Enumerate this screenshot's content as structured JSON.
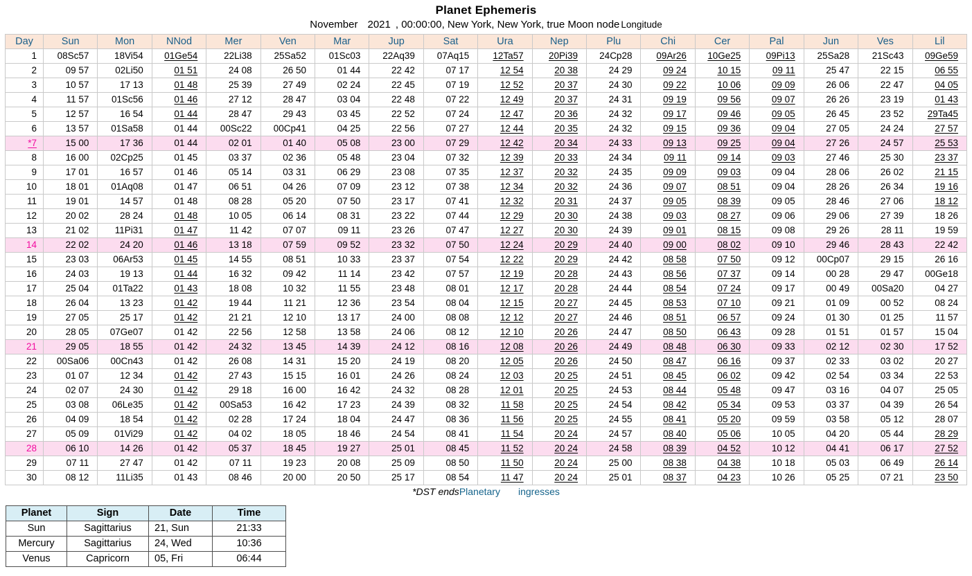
{
  "title": "Planet Ephemeris",
  "subtitle": [
    "November",
    "2021",
    ", 00:00:00, New York, New York, true Moon node",
    "Longitude"
  ],
  "colors": {
    "header_bg": "#fbe6d8",
    "header_text": "#1b5f8a",
    "hl_bg": "#fcdcef",
    "magenta": "#f20ca0",
    "grid": "#c9c9c9",
    "link": "#16648c",
    "ing_header_bg": "#d8eef5"
  },
  "note": "underscore prefix on a cell value means the value is rendered underlined (retrograde)",
  "table": {
    "columns": [
      "Day",
      "Sun",
      "Mon",
      "NNod",
      "Mer",
      "Ven",
      "Mar",
      "Jup",
      "Sat",
      "Ura",
      "Nep",
      "Plu",
      "Chi",
      "Cer",
      "Pal",
      "Jun",
      "Ves",
      "Lil"
    ],
    "rows": [
      {
        "day": "1",
        "cells": [
          "08Sc57",
          "18Vi54",
          "_01Ge54",
          "22Li38",
          "25Sa52",
          "01Sc03",
          "22Aq39",
          "07Aq15",
          "_12Ta57",
          "_20Pi39",
          "24Cp28",
          "_09Ar26",
          "_10Ge25",
          "_09Pi13",
          "25Sa28",
          "21Sc43",
          "_09Ge59"
        ]
      },
      {
        "day": "2",
        "cells": [
          "09 57",
          "02Li50",
          "_01 51",
          "24 08",
          "26 50",
          "01 44",
          "22 42",
          "07 17",
          "_12 54",
          "_20 38",
          "24 29",
          "_09 24",
          "_10 15",
          "_09 11",
          "25 47",
          "22 15",
          "_06 55"
        ]
      },
      {
        "day": "3",
        "cells": [
          "10 57",
          "17 13",
          "_01 48",
          "25 39",
          "27 49",
          "02 24",
          "22 45",
          "07 19",
          "_12 52",
          "_20 37",
          "24 30",
          "_09 22",
          "_10 06",
          "_09 09",
          "26 06",
          "22 47",
          "_04 05"
        ]
      },
      {
        "day": "4",
        "cells": [
          "11 57",
          "01Sc56",
          "_01 46",
          "27 12",
          "28 47",
          "03 04",
          "22 48",
          "07 22",
          "_12 49",
          "_20 37",
          "24 31",
          "_09 19",
          "_09 56",
          "_09 07",
          "26 26",
          "23 19",
          "_01 43"
        ]
      },
      {
        "day": "5",
        "cells": [
          "12 57",
          "16 54",
          "_01 44",
          "28 47",
          "29 43",
          "03 45",
          "22 52",
          "07 24",
          "_12 47",
          "_20 36",
          "24 32",
          "_09 17",
          "_09 46",
          "_09 05",
          "26 45",
          "23 52",
          "_29Ta45"
        ]
      },
      {
        "day": "6",
        "cells": [
          "13 57",
          "01Sa58",
          "01 44",
          "00Sc22",
          "00Cp41",
          "04 25",
          "22 56",
          "07 27",
          "_12 44",
          "_20 35",
          "24 32",
          "_09 15",
          "_09 36",
          "_09 04",
          "27 05",
          "24 24",
          "_27 57"
        ]
      },
      {
        "day": "*7",
        "hl": true,
        "mag": true,
        "du": true,
        "cells": [
          "15 00",
          "17 36",
          "01 44",
          "02 01",
          "01 40",
          "05 08",
          "23 00",
          "07 29",
          "_12 42",
          "_20 34",
          "24 33",
          "_09 13",
          "_09 25",
          "_09 04",
          "27 26",
          "24 57",
          "_25 53"
        ]
      },
      {
        "day": "8",
        "cells": [
          "16 00",
          "02Cp25",
          "01 45",
          "03 37",
          "02 36",
          "05 48",
          "23 04",
          "07 32",
          "_12 39",
          "_20 33",
          "24 34",
          "_09 11",
          "_09 14",
          "_09 03",
          "27 46",
          "25 30",
          "_23 37"
        ]
      },
      {
        "day": "9",
        "cells": [
          "17 01",
          "16 57",
          "01 46",
          "05 14",
          "03 31",
          "06 29",
          "23 08",
          "07 35",
          "_12 37",
          "_20 32",
          "24 35",
          "_09 09",
          "_09 03",
          "09 04",
          "28 06",
          "26 02",
          "_21 15"
        ]
      },
      {
        "day": "10",
        "cells": [
          "18 01",
          "01Aq08",
          "01 47",
          "06 51",
          "04 26",
          "07 09",
          "23 12",
          "07 38",
          "_12 34",
          "_20 32",
          "24 36",
          "_09 07",
          "_08 51",
          "09 04",
          "28 26",
          "26 34",
          "_19 16"
        ]
      },
      {
        "day": "11",
        "cells": [
          "19 01",
          "14 57",
          "01 48",
          "08 28",
          "05 20",
          "07 50",
          "23 17",
          "07 41",
          "_12 32",
          "_20 31",
          "24 37",
          "_09 05",
          "_08 39",
          "09 05",
          "28 46",
          "27 06",
          "_18 12"
        ]
      },
      {
        "day": "12",
        "cells": [
          "20 02",
          "28 24",
          "_01 48",
          "10 05",
          "06 14",
          "08 31",
          "23 22",
          "07 44",
          "_12 29",
          "_20 30",
          "24 38",
          "_09 03",
          "_08 27",
          "09 06",
          "29 06",
          "27 39",
          "18 26"
        ]
      },
      {
        "day": "13",
        "cells": [
          "21 02",
          "11Pi31",
          "_01 47",
          "11 42",
          "07 07",
          "09 11",
          "23 26",
          "07 47",
          "_12 27",
          "_20 30",
          "24 39",
          "_09 01",
          "_08 15",
          "09 08",
          "29 26",
          "28 11",
          "19 59"
        ]
      },
      {
        "day": "14",
        "hl": true,
        "mag": true,
        "cells": [
          "22 02",
          "24 20",
          "_01 46",
          "13 18",
          "07 59",
          "09 52",
          "23 32",
          "07 50",
          "_12 24",
          "_20 29",
          "24 40",
          "_09 00",
          "_08 02",
          "09 10",
          "29 46",
          "28 43",
          "22 42"
        ]
      },
      {
        "day": "15",
        "cells": [
          "23 03",
          "06Ar53",
          "_01 45",
          "14 55",
          "08 51",
          "10 33",
          "23 37",
          "07 54",
          "_12 22",
          "_20 29",
          "24 42",
          "_08 58",
          "_07 50",
          "09 12",
          "00Cp07",
          "29 15",
          "26 16"
        ]
      },
      {
        "day": "16",
        "cells": [
          "24 03",
          "19 13",
          "_01 44",
          "16 32",
          "09 42",
          "11 14",
          "23 42",
          "07 57",
          "_12 19",
          "_20 28",
          "24 43",
          "_08 56",
          "_07 37",
          "09 14",
          "00 28",
          "29 47",
          "00Ge18"
        ]
      },
      {
        "day": "17",
        "cells": [
          "25 04",
          "01Ta22",
          "_01 43",
          "18 08",
          "10 32",
          "11 55",
          "23 48",
          "08 01",
          "_12 17",
          "_20 28",
          "24 44",
          "_08 54",
          "_07 24",
          "09 17",
          "00 49",
          "00Sa20",
          "04 27"
        ]
      },
      {
        "day": "18",
        "cells": [
          "26 04",
          "13 23",
          "_01 42",
          "19 44",
          "11 21",
          "12 36",
          "23 54",
          "08 04",
          "_12 15",
          "_20 27",
          "24 45",
          "_08 53",
          "_07 10",
          "09 21",
          "01 09",
          "00 52",
          "08 24"
        ]
      },
      {
        "day": "19",
        "cells": [
          "27 05",
          "25 17",
          "_01 42",
          "21 21",
          "12 10",
          "13 17",
          "24 00",
          "08 08",
          "_12 12",
          "_20 27",
          "24 46",
          "_08 51",
          "_06 57",
          "09 24",
          "01 30",
          "01 25",
          "11 57"
        ]
      },
      {
        "day": "20",
        "cells": [
          "28 05",
          "07Ge07",
          "01 42",
          "22 56",
          "12 58",
          "13 58",
          "24 06",
          "08 12",
          "_12 10",
          "_20 26",
          "24 47",
          "_08 50",
          "_06 43",
          "09 28",
          "01 51",
          "01 57",
          "15 04"
        ]
      },
      {
        "day": "21",
        "hl": true,
        "mag": true,
        "cells": [
          "29 05",
          "18 55",
          "01 42",
          "24 32",
          "13 45",
          "14 39",
          "24 12",
          "08 16",
          "_12 08",
          "_20 26",
          "24 49",
          "_08 48",
          "_06 30",
          "09 33",
          "02 12",
          "02 30",
          "17 52"
        ]
      },
      {
        "day": "22",
        "cells": [
          "00Sa06",
          "00Cn43",
          "01 42",
          "26 08",
          "14 31",
          "15 20",
          "24 19",
          "08 20",
          "_12 05",
          "_20 26",
          "24 50",
          "_08 47",
          "_06 16",
          "09 37",
          "02 33",
          "03 02",
          "20 27"
        ]
      },
      {
        "day": "23",
        "cells": [
          "01 07",
          "12 34",
          "_01 42",
          "27 43",
          "15 15",
          "16 01",
          "24 26",
          "08 24",
          "_12 03",
          "_20 25",
          "24 51",
          "_08 45",
          "_06 02",
          "09 42",
          "02 54",
          "03 34",
          "22 53"
        ]
      },
      {
        "day": "24",
        "cells": [
          "02 07",
          "24 30",
          "_01 42",
          "29 18",
          "16 00",
          "16 42",
          "24 32",
          "08 28",
          "_12 01",
          "_20 25",
          "24 53",
          "_08 44",
          "_05 48",
          "09 47",
          "03 16",
          "04 07",
          "25 05"
        ]
      },
      {
        "day": "25",
        "cells": [
          "03 08",
          "06Le35",
          "_01 42",
          "00Sa53",
          "16 42",
          "17 23",
          "24 39",
          "08 32",
          "_11 58",
          "_20 25",
          "24 54",
          "_08 42",
          "_05 34",
          "09 53",
          "03 37",
          "04 39",
          "26 54"
        ]
      },
      {
        "day": "26",
        "cells": [
          "04 09",
          "18 54",
          "_01 42",
          "02 28",
          "17 24",
          "18 04",
          "24 47",
          "08 36",
          "_11 56",
          "_20 25",
          "24 55",
          "_08 41",
          "_05 20",
          "09 59",
          "03 58",
          "05 12",
          "28 07"
        ]
      },
      {
        "day": "27",
        "cells": [
          "05 09",
          "01Vi29",
          "_01 42",
          "04 02",
          "18 05",
          "18 46",
          "24 54",
          "08 41",
          "_11 54",
          "_20 24",
          "24 57",
          "_08 40",
          "_05 06",
          "10 05",
          "04 20",
          "05 44",
          "_28 29"
        ]
      },
      {
        "day": "28",
        "hl": true,
        "mag": true,
        "cells": [
          "06 10",
          "14 26",
          "01 42",
          "05 37",
          "18 45",
          "19 27",
          "25 01",
          "08 45",
          "_11 52",
          "_20 24",
          "24 58",
          "_08 39",
          "_04 52",
          "10 12",
          "04 41",
          "06 17",
          "_27 52"
        ]
      },
      {
        "day": "29",
        "cells": [
          "07 11",
          "27 47",
          "01 42",
          "07 11",
          "19 23",
          "20 08",
          "25 09",
          "08 50",
          "_11 50",
          "_20 24",
          "25 00",
          "_08 38",
          "_04 38",
          "10 18",
          "05 03",
          "06 49",
          "_26 14"
        ]
      },
      {
        "day": "30",
        "cells": [
          "08 12",
          "11Li35",
          "01 43",
          "08 46",
          "20 00",
          "20 50",
          "25 17",
          "08 54",
          "_11 47",
          "_20 24",
          "25 01",
          "_08 37",
          "_04 23",
          "10 26",
          "05 25",
          "07 21",
          "_23 50"
        ]
      }
    ]
  },
  "footer": {
    "dst": "*DST ends",
    "link1": "Planetary",
    "link2": "ingresses"
  },
  "ingress": {
    "columns": [
      "Planet",
      "Sign",
      "Date",
      "Time"
    ],
    "rows": [
      [
        "Sun",
        "Sagittarius",
        "21, Sun",
        "21:33"
      ],
      [
        "Mercury",
        "Sagittarius",
        "24, Wed",
        "10:36"
      ],
      [
        "Venus",
        "Capricorn",
        "05, Fri",
        "06:44"
      ]
    ]
  }
}
